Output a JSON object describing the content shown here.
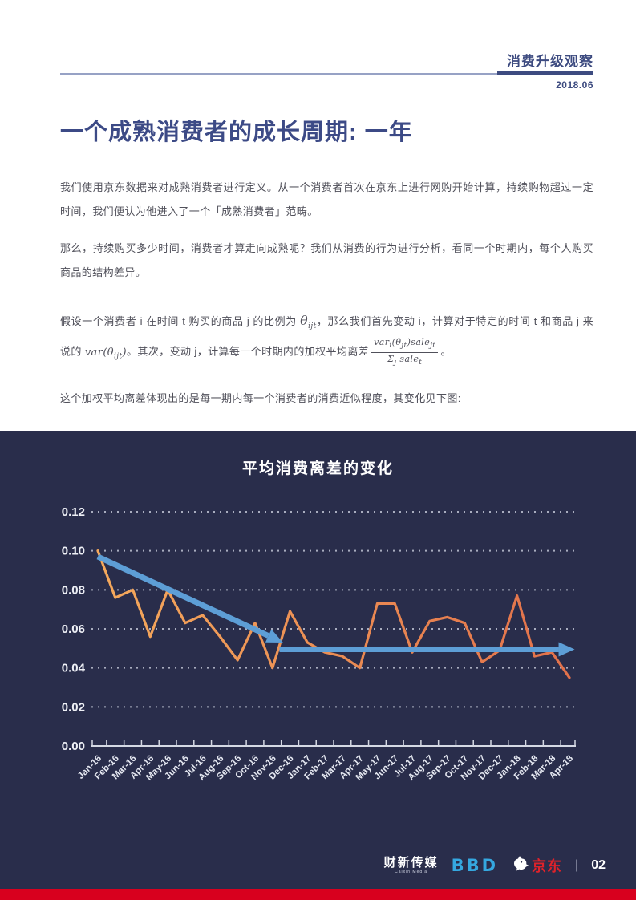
{
  "header": {
    "brand": "消费升级观察",
    "issue": "2018.06"
  },
  "article": {
    "title": "一个成熟消费者的成长周期: 一年",
    "p1": "我们使用京东数据来对成熟消费者进行定义。从一个消费者首次在京东上进行网购开始计算，持续购物超过一定时间，我们便认为他进入了一个「成熟消费者」范畴。",
    "p2": "那么，持续购买多少时间，消费者才算走向成熟呢？我们从消费的行为进行分析，看同一个时期内，每个人购买商品的结构差异。",
    "f": {
      "s1": "假设一个消费者 i 在时间 t 购买的商品 j 的比例为 ",
      "m1b": "θ",
      "m1s": "ijt",
      "s2": "，那么我们首先变动 i，计算对于特定的时间 t 和商品 j 来说的 ",
      "m2a": "var(θ",
      "m2s": "ijt",
      "m2b": ")",
      "s3": "。其次，变动 j，计算每一个时期内的加权平均离差",
      "num1": "var",
      "numsub1": "i",
      "num2": "(θ",
      "numsub2": "jt",
      "num3": ")sale",
      "numsub3": "jt",
      "den1": "Σ",
      "densub1": "j",
      "den2": " sale",
      "densub2": "t",
      "s4": "。"
    },
    "p4": "这个加权平均离差体现出的是每一期内每一个消费者的消费近似程度，其变化见下图:"
  },
  "chart_data": {
    "type": "line",
    "title": "平均消费离差的变化",
    "categories": [
      "Jan-16",
      "Feb-16",
      "Mar-16",
      "Apr-16",
      "May-16",
      "Jun-16",
      "Jul-16",
      "Aug-16",
      "Sep-16",
      "Oct-16",
      "Nov-16",
      "Dec-16",
      "Jan-17",
      "Feb-17",
      "Mar-17",
      "Apr-17",
      "May-17",
      "Jun-17",
      "Jul-17",
      "Aug-17",
      "Sep-17",
      "Oct-17",
      "Nov-17",
      "Dec-17",
      "Jan-18",
      "Feb-18",
      "Mar-18",
      "Apr-18"
    ],
    "series": [
      {
        "name": "加权平均离差",
        "values": [
          0.1,
          0.076,
          0.08,
          0.056,
          0.08,
          0.063,
          0.067,
          0.056,
          0.044,
          0.063,
          0.04,
          0.069,
          0.053,
          0.048,
          0.046,
          0.04,
          0.073,
          0.073,
          0.048,
          0.064,
          0.066,
          0.063,
          0.043,
          0.049,
          0.077,
          0.046,
          0.048,
          0.035
        ]
      }
    ],
    "ylim": [
      0,
      0.12
    ],
    "ytick_labels": [
      "0.00",
      "0.02",
      "0.04",
      "0.06",
      "0.08",
      "0.10",
      "0.12"
    ],
    "grid": "horizontal-dotted",
    "legend": "none",
    "colors": {
      "line_start": "#f4a95c",
      "line_end": "#e2714b",
      "arrow": "#5d9ed6",
      "grid": "#c9cedd",
      "axis": "#d5d9e4",
      "tick_text": "#eef0f6"
    },
    "annotations": [
      {
        "kind": "trend-arrow-down",
        "x1_index": 0,
        "y1": 0.097,
        "x2_index": 10.6,
        "y2": 0.053
      },
      {
        "kind": "trend-arrow-flat",
        "x1_index": 10.4,
        "y1": 0.0495,
        "x2_index": 27.3,
        "y2": 0.0495
      }
    ]
  },
  "footer": {
    "caixin": "财新传媒",
    "caixin_sub": "Caixin Media",
    "bbd": "BBD",
    "jd": "京东",
    "separator": "|",
    "page_number": "02",
    "icons": {
      "jd_dog": "dog-silhouette"
    }
  },
  "theme": {
    "dark_bg": "#292d4b",
    "accent_red": "#d8001e",
    "navy_text": "#3d4b80"
  }
}
